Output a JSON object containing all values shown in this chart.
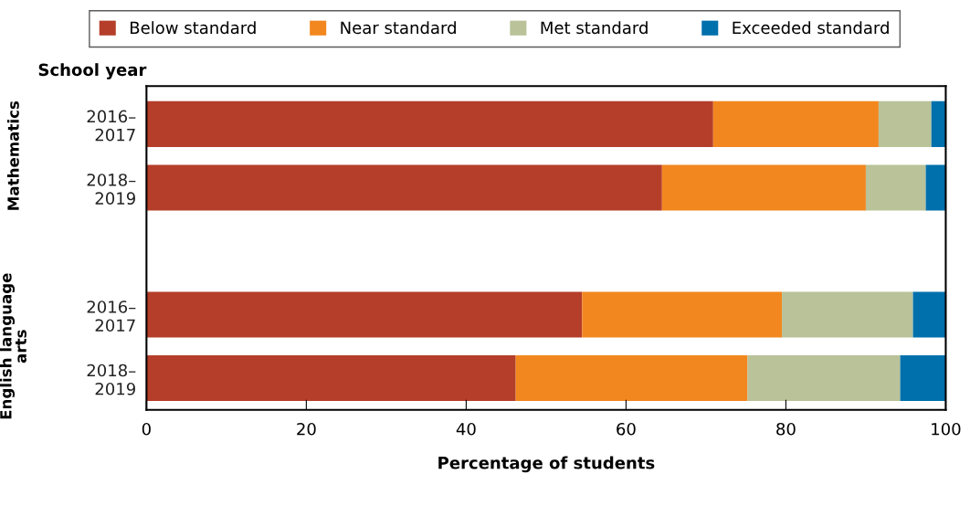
{
  "chart_data": {
    "type": "bar",
    "orientation": "horizontal",
    "stacked": true,
    "ylabel": "School year",
    "xlabel": "Percentage of students",
    "categories": [
      "2016–\n2017",
      "2018–\n2019",
      null,
      "2016–\n2017",
      "2018–\n2019"
    ],
    "series": [
      {
        "name": "Below standard",
        "color": "#b53e2a",
        "values": [
          70.9,
          64.5,
          null,
          54.5,
          46.2
        ]
      },
      {
        "name": "Near standard",
        "color": "#f2871f",
        "values": [
          20.7,
          25.5,
          null,
          25.0,
          29.0
        ]
      },
      {
        "name": "Met standard",
        "color": "#b9c298",
        "values": [
          6.6,
          7.5,
          null,
          16.4,
          19.1
        ]
      },
      {
        "name": "Exceeded standard",
        "color": "#0070ac",
        "values": [
          1.8,
          2.5,
          null,
          4.1,
          5.7
        ]
      }
    ],
    "annotations": [
      "Mathematics",
      "English language\narts"
    ],
    "xlim": [
      0,
      100
    ],
    "xticks": [
      0,
      20,
      40,
      60,
      80,
      100
    ],
    "grid": false,
    "legend": "top"
  }
}
